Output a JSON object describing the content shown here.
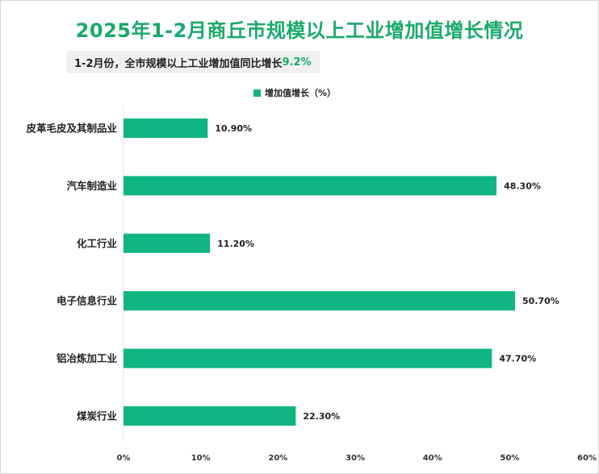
{
  "title": "2025年1-2月商丘市规模以上工业增加值增长情况",
  "subtitle": {
    "text": "1-2月份，全市规模以上工业增加值同比增长",
    "highlight": "9.2%"
  },
  "colors": {
    "accent": "#1aaa6a",
    "bar": "#10b581"
  },
  "chart_data": {
    "type": "bar",
    "orientation": "horizontal",
    "categories": [
      "皮革毛皮及其制品业",
      "汽车制造业",
      "化工行业",
      "电子信息行业",
      "铝冶炼加工业",
      "煤炭行业"
    ],
    "series": [
      {
        "name": "增加值增长（%）",
        "values": [
          10.9,
          48.3,
          11.2,
          50.7,
          47.7,
          22.3
        ],
        "labels": [
          "10.90%",
          "48.30%",
          "11.20%",
          "50.70%",
          "47.70%",
          "22.30%"
        ]
      }
    ],
    "xlim": [
      0,
      60
    ],
    "x_ticks": [
      0,
      10,
      20,
      30,
      40,
      50,
      60
    ],
    "x_tick_labels": [
      "0%",
      "10%",
      "20%",
      "30%",
      "40%",
      "50%",
      "60%"
    ],
    "grid": false,
    "legend_position": "top"
  }
}
